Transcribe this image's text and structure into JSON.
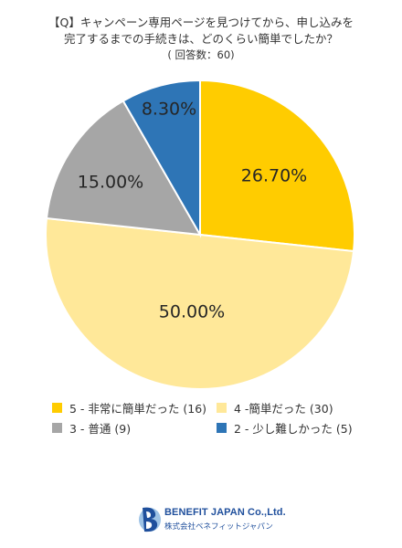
{
  "title": {
    "line1": "【Q】キャンペーン専用ページを見つけてから、申し込みを",
    "line2": "完了するまでの手続きは、どのくらい簡単でしたか？",
    "respondents": "( 回答数：60)"
  },
  "chart_data": {
    "type": "pie",
    "categories": [
      "5 - 非常に簡単だった (16)",
      "4 -簡単だった (30)",
      "3 - 普通 (9)",
      "2 - 少し難しかった (5)"
    ],
    "values": [
      26.7,
      50.0,
      15.0,
      8.3
    ],
    "data_labels": [
      "26.70%",
      "50.00%",
      "15.00%",
      "8.30%"
    ],
    "colors": [
      "#ffcc00",
      "#ffe899",
      "#a6a6a6",
      "#2e75b6"
    ],
    "start": "12 o'clock",
    "direction": "clockwise",
    "legend_position": "bottom"
  },
  "logo": {
    "name": "BENEFIT JAPAN Co.,Ltd.",
    "subtitle": "株式会社ベネフィットジャパン",
    "colors": [
      "#1f4f9c",
      "#9ec3e6"
    ]
  }
}
